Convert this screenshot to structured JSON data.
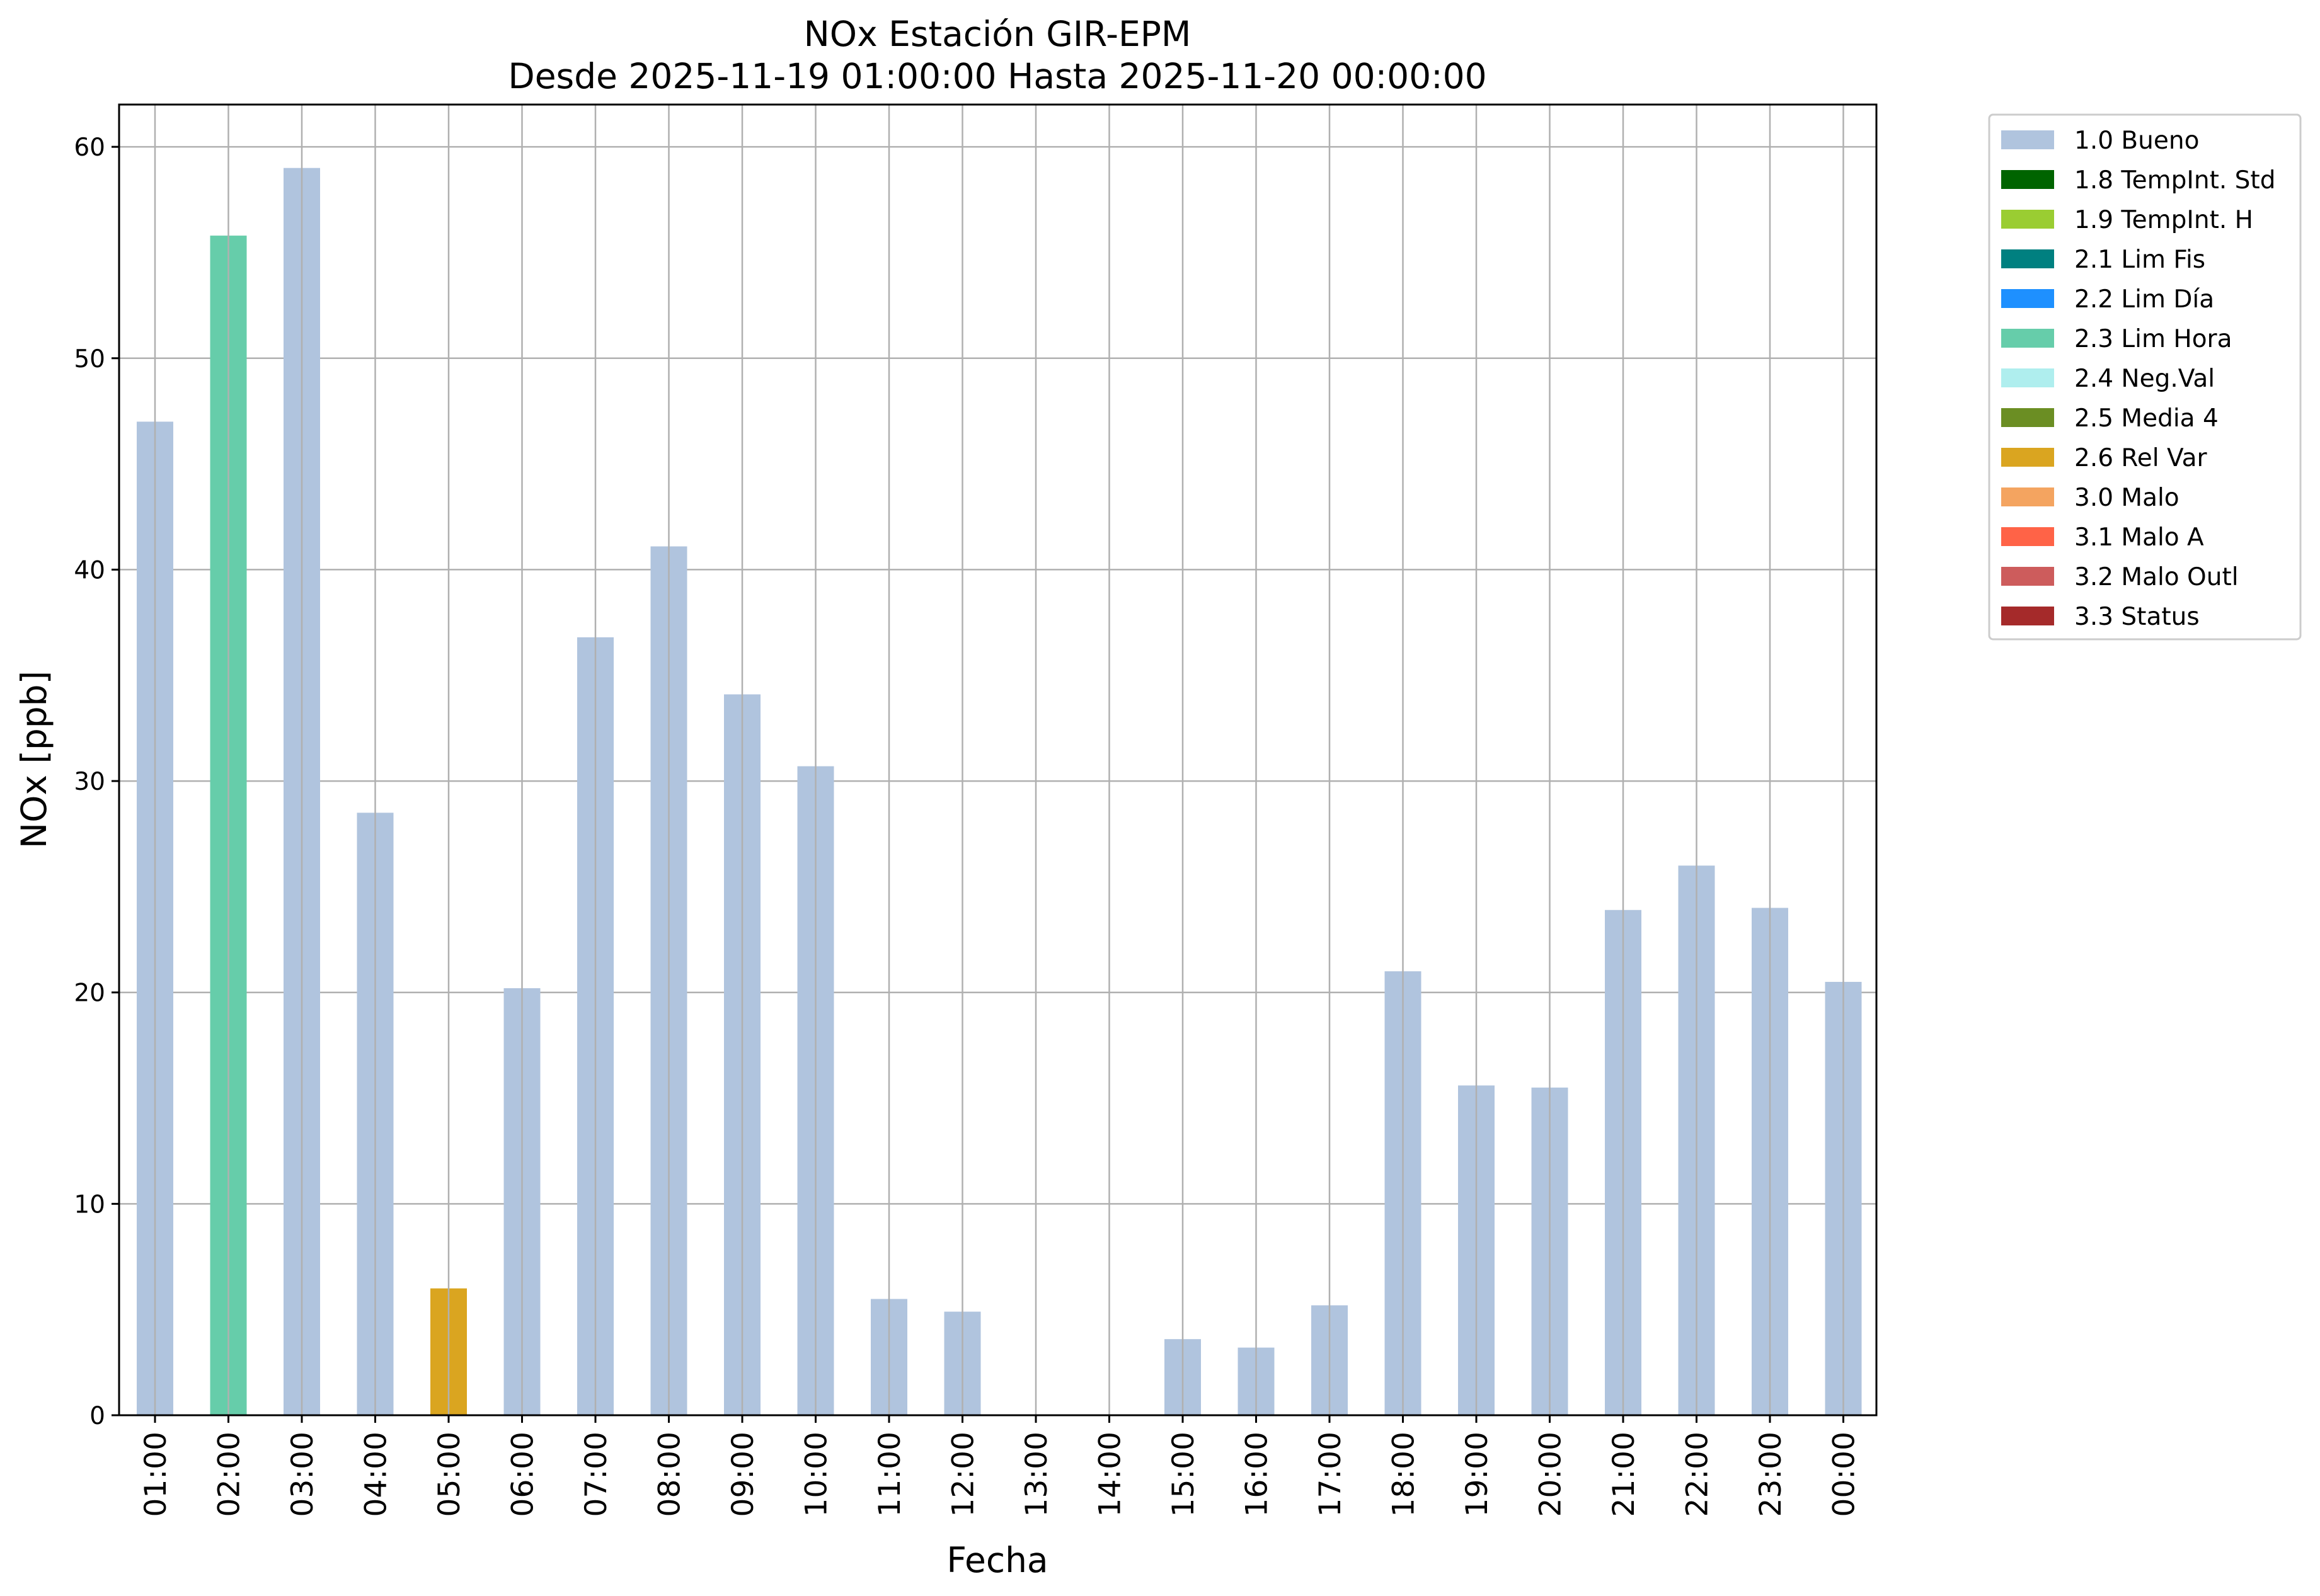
{
  "chart_data": {
    "type": "bar",
    "title": "NOx Estación GIR-EPM",
    "subtitle": "Desde 2025-11-19 01:00:00 Hasta 2025-11-20 00:00:00",
    "xlabel": "Fecha",
    "ylabel": "NOx [ppb]",
    "ylim": [
      0,
      62
    ],
    "yticks": [
      0,
      10,
      20,
      30,
      40,
      50,
      60
    ],
    "grid": true,
    "legend_position": "outside upper right",
    "categories": [
      "01:00",
      "02:00",
      "03:00",
      "04:00",
      "05:00",
      "06:00",
      "07:00",
      "08:00",
      "09:00",
      "10:00",
      "11:00",
      "12:00",
      "13:00",
      "14:00",
      "15:00",
      "16:00",
      "17:00",
      "18:00",
      "19:00",
      "20:00",
      "21:00",
      "22:00",
      "23:00",
      "00:00"
    ],
    "values": [
      47.0,
      55.8,
      59.0,
      28.5,
      6.0,
      20.2,
      36.8,
      41.1,
      34.1,
      30.7,
      5.5,
      4.9,
      0,
      0,
      3.6,
      3.2,
      5.2,
      21.0,
      15.6,
      15.5,
      23.9,
      26.0,
      24.0,
      20.5
    ],
    "flags": [
      "1.0 Bueno",
      "2.3 Lim Hora",
      "1.0 Bueno",
      "1.0 Bueno",
      "2.6 Rel Var",
      "1.0 Bueno",
      "1.0 Bueno",
      "1.0 Bueno",
      "1.0 Bueno",
      "1.0 Bueno",
      "1.0 Bueno",
      "1.0 Bueno",
      "1.0 Bueno",
      "1.0 Bueno",
      "1.0 Bueno",
      "1.0 Bueno",
      "1.0 Bueno",
      "1.0 Bueno",
      "1.0 Bueno",
      "1.0 Bueno",
      "1.0 Bueno",
      "1.0 Bueno",
      "1.0 Bueno",
      "1.0 Bueno"
    ],
    "legend": [
      {
        "label": "1.0 Bueno",
        "color": "#b0c4de"
      },
      {
        "label": "1.8 TempInt. Std",
        "color": "#006400"
      },
      {
        "label": "1.9 TempInt. H",
        "color": "#9acd32"
      },
      {
        "label": "2.1 Lim Fis",
        "color": "#008080"
      },
      {
        "label": "2.2 Lim Día",
        "color": "#1e90ff"
      },
      {
        "label": "2.3 Lim Hora",
        "color": "#66cdaa"
      },
      {
        "label": "2.4 Neg.Val",
        "color": "#afeeee"
      },
      {
        "label": "2.5 Media 4",
        "color": "#6b8e23"
      },
      {
        "label": "2.6 Rel Var",
        "color": "#daa520"
      },
      {
        "label": "3.0 Malo",
        "color": "#f4a460"
      },
      {
        "label": "3.1 Malo A",
        "color": "#ff6347"
      },
      {
        "label": "3.2 Malo Outl",
        "color": "#cd5c5c"
      },
      {
        "label": "3.3 Status",
        "color": "#a52a2a"
      }
    ]
  }
}
